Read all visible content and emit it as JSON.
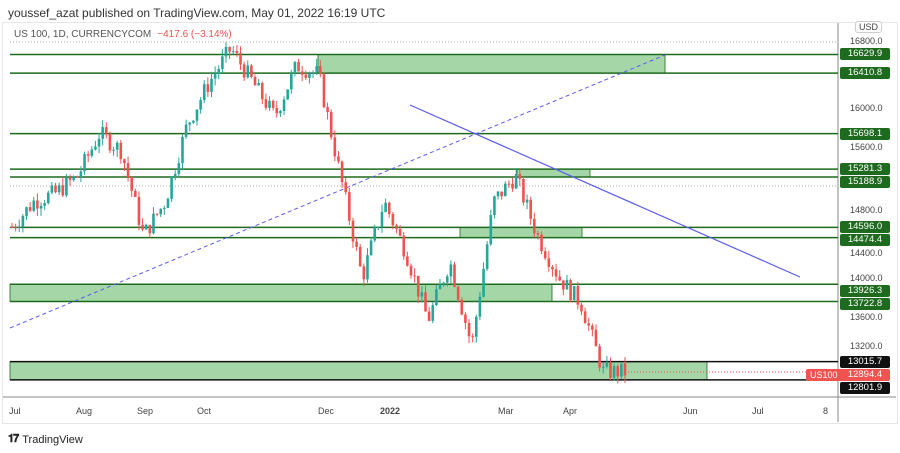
{
  "header": {
    "published": "youssef_azat published on TradingView.com, May 01, 2022 16:19 UTC"
  },
  "legend": {
    "symbol": "US 100, 1D, CURRENCYCOM",
    "change": "−417.6 (−3.14%)"
  },
  "currency": "USD",
  "footer": {
    "brand": "TradingView"
  },
  "chart_data": {
    "type": "candlestick",
    "symbol": "US100",
    "ylim": [
      12700,
      16850
    ],
    "y_ticks": [
      "16800.0",
      "16000.0",
      "15600.0",
      "14800.0",
      "14400.0",
      "14000.0",
      "13600.0",
      "13200.0"
    ],
    "x_ticks": [
      "Jul",
      "Aug",
      "Sep",
      "Oct",
      "Dec",
      "2022",
      "Mar",
      "Apr",
      "Jun",
      "Jul",
      "8"
    ],
    "close_path": [
      {
        "date": "Jul",
        "close": 14600
      },
      {
        "date": "mid-Jul",
        "close": 14900
      },
      {
        "date": "Aug",
        "close": 15000
      },
      {
        "date": "mid-Aug",
        "close": 15200
      },
      {
        "date": "Sep",
        "close": 15700
      },
      {
        "date": "mid-Sep",
        "close": 15500
      },
      {
        "date": "Oct",
        "close": 14500
      },
      {
        "date": "mid-Oct",
        "close": 14900
      },
      {
        "date": "Nov",
        "close": 15800
      },
      {
        "date": "mid-Nov",
        "close": 16300
      },
      {
        "date": "late-Nov",
        "close": 16700
      },
      {
        "date": "Dec",
        "close": 16300
      },
      {
        "date": "mid-Dec",
        "close": 15900
      },
      {
        "date": "late-Dec",
        "close": 16500
      },
      {
        "date": "early-Jan",
        "close": 16400
      },
      {
        "date": "mid-Jan",
        "close": 15200
      },
      {
        "date": "late-Jan",
        "close": 14000
      },
      {
        "date": "early-Feb",
        "close": 14900
      },
      {
        "date": "mid-Feb",
        "close": 14300
      },
      {
        "date": "late-Feb",
        "close": 13500
      },
      {
        "date": "early-Mar",
        "close": 14200
      },
      {
        "date": "mid-Mar",
        "close": 13200
      },
      {
        "date": "late-Mar",
        "close": 14900
      },
      {
        "date": "early-Apr",
        "close": 15200
      },
      {
        "date": "Apr",
        "close": 14500
      },
      {
        "date": "mid-Apr",
        "close": 14000
      },
      {
        "date": "late-Apr",
        "close": 13700
      },
      {
        "date": "end-Apr",
        "close": 12900
      },
      {
        "date": "last",
        "close": 12894.4
      }
    ],
    "last_price": "12894.4",
    "levels": [
      {
        "price": 16629.9,
        "label": "16629.9"
      },
      {
        "price": 16410.8,
        "label": "16410.8"
      },
      {
        "price": 15698.1,
        "label": "15698.1"
      },
      {
        "price": 15281.3,
        "label": "15281.3"
      },
      {
        "price": 15188.9,
        "label": "15188.9"
      },
      {
        "price": 14596.0,
        "label": "14596.0"
      },
      {
        "price": 14474.4,
        "label": "14474.4"
      },
      {
        "price": 13926.3,
        "label": "13926.3"
      },
      {
        "price": 13722.8,
        "label": "13722.8"
      },
      {
        "price": 13015.7,
        "label": "13015.7",
        "style": "black"
      },
      {
        "price": 12801.9,
        "label": "12801.9",
        "style": "black"
      }
    ],
    "zones": [
      [
        16410.8,
        16629.9
      ],
      [
        15188.9,
        15281.3
      ],
      [
        14474.4,
        14596.0
      ],
      [
        13722.8,
        13926.3
      ],
      [
        12801.9,
        13015.7
      ]
    ],
    "colors": {
      "up": "#26a69a",
      "down": "#ef5350",
      "zone": "#a5d6a7",
      "level": "#1e6a1e",
      "trend": "#5b5bf0"
    }
  }
}
